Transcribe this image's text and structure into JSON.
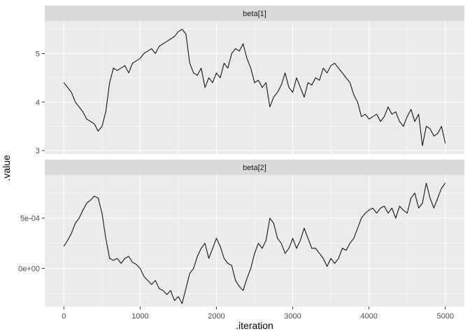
{
  "chart_data": {
    "type": "line",
    "xlabel": ".iteration",
    "ylabel": ".value",
    "xlim": [
      -250,
      5250
    ],
    "x_ticks": [
      0,
      1000,
      2000,
      3000,
      4000,
      5000
    ],
    "x_tick_labels": [
      "0",
      "1000",
      "2000",
      "3000",
      "4000",
      "5000"
    ],
    "grid": true,
    "line_color": "#000000",
    "panel_background": "#ebebeb",
    "strip_background": "#d9d9d9",
    "facets": [
      {
        "title": "beta[1]",
        "ylim": [
          2.93,
          5.67
        ],
        "y_ticks": [
          3,
          4,
          5
        ],
        "y_tick_labels": [
          "3",
          "4",
          "5"
        ],
        "x": [
          0,
          50,
          100,
          150,
          200,
          250,
          300,
          350,
          400,
          450,
          500,
          550,
          600,
          650,
          700,
          750,
          800,
          850,
          900,
          950,
          1000,
          1050,
          1100,
          1150,
          1200,
          1250,
          1300,
          1350,
          1400,
          1450,
          1500,
          1550,
          1600,
          1650,
          1700,
          1750,
          1800,
          1850,
          1900,
          1950,
          2000,
          2050,
          2100,
          2150,
          2200,
          2250,
          2300,
          2350,
          2400,
          2450,
          2500,
          2550,
          2600,
          2650,
          2700,
          2750,
          2800,
          2850,
          2900,
          2950,
          3000,
          3050,
          3100,
          3150,
          3200,
          3250,
          3300,
          3350,
          3400,
          3450,
          3500,
          3550,
          3600,
          3650,
          3700,
          3750,
          3800,
          3850,
          3900,
          3950,
          4000,
          4050,
          4100,
          4150,
          4200,
          4250,
          4300,
          4350,
          4400,
          4450,
          4500,
          4550,
          4600,
          4650,
          4700,
          4750,
          4800,
          4850,
          4900,
          4950,
          5000
        ],
        "values": [
          4.4,
          4.3,
          4.2,
          4.0,
          3.9,
          3.8,
          3.65,
          3.6,
          3.55,
          3.4,
          3.5,
          3.8,
          4.4,
          4.7,
          4.65,
          4.7,
          4.75,
          4.6,
          4.8,
          4.85,
          4.9,
          5.0,
          5.05,
          5.1,
          5.0,
          5.15,
          5.2,
          5.25,
          5.3,
          5.35,
          5.45,
          5.5,
          5.4,
          4.8,
          4.6,
          4.55,
          4.7,
          4.3,
          4.5,
          4.4,
          4.6,
          4.5,
          4.8,
          4.7,
          5.0,
          5.1,
          5.05,
          5.2,
          4.9,
          4.7,
          4.4,
          4.45,
          4.3,
          4.4,
          3.9,
          4.1,
          4.2,
          4.35,
          4.6,
          4.3,
          4.2,
          4.5,
          4.3,
          4.1,
          4.4,
          4.35,
          4.5,
          4.45,
          4.7,
          4.6,
          4.75,
          4.8,
          4.7,
          4.6,
          4.5,
          4.4,
          4.15,
          4.0,
          3.7,
          3.75,
          3.65,
          3.7,
          3.75,
          3.6,
          3.7,
          3.9,
          3.75,
          3.8,
          3.6,
          3.5,
          3.7,
          3.85,
          3.6,
          3.75,
          3.1,
          3.5,
          3.45,
          3.3,
          3.35,
          3.5,
          3.15
        ]
      },
      {
        "title": "beta[2]",
        "ylim": [
          -0.00038,
          0.00093
        ],
        "y_ticks": [
          0,
          0.0005
        ],
        "y_tick_labels": [
          "0e+00",
          "5e-04"
        ],
        "x": [
          0,
          50,
          100,
          150,
          200,
          250,
          300,
          350,
          400,
          450,
          500,
          550,
          600,
          650,
          700,
          750,
          800,
          850,
          900,
          950,
          1000,
          1050,
          1100,
          1150,
          1200,
          1250,
          1300,
          1350,
          1400,
          1450,
          1500,
          1550,
          1600,
          1650,
          1700,
          1750,
          1800,
          1850,
          1900,
          1950,
          2000,
          2050,
          2100,
          2150,
          2200,
          2250,
          2300,
          2350,
          2400,
          2450,
          2500,
          2550,
          2600,
          2650,
          2700,
          2750,
          2800,
          2850,
          2900,
          2950,
          3000,
          3050,
          3100,
          3150,
          3200,
          3250,
          3300,
          3350,
          3400,
          3450,
          3500,
          3550,
          3600,
          3650,
          3700,
          3750,
          3800,
          3850,
          3900,
          3950,
          4000,
          4050,
          4100,
          4150,
          4200,
          4250,
          4300,
          4350,
          4400,
          4450,
          4500,
          4550,
          4600,
          4650,
          4700,
          4750,
          4800,
          4850,
          4900,
          4950,
          5000
        ],
        "values": [
          0.00022,
          0.00028,
          0.00035,
          0.00045,
          0.0005,
          0.00058,
          0.00065,
          0.00068,
          0.00072,
          0.0007,
          0.00055,
          0.0003,
          0.0001,
          8e-05,
          0.0001,
          5e-05,
          0.0001,
          0.00012,
          6e-05,
          4e-05,
          0.0,
          -8e-05,
          -0.00012,
          -0.00016,
          -0.00012,
          -0.0002,
          -0.00022,
          -0.00026,
          -0.00022,
          -0.00032,
          -0.00028,
          -0.00035,
          -0.0002,
          -5e-05,
          0.0,
          0.00012,
          0.0002,
          0.00025,
          0.0001,
          0.0002,
          0.0003,
          0.00022,
          0.0001,
          5e-05,
          3e-05,
          -0.00012,
          -0.00018,
          -0.00022,
          -0.0001,
          0.0,
          0.00015,
          0.00025,
          0.0002,
          0.00028,
          0.0005,
          0.00045,
          0.0003,
          0.00025,
          0.00015,
          0.0002,
          0.0003,
          0.0002,
          0.00028,
          0.0004,
          0.0003,
          0.0002,
          0.0002,
          0.00015,
          0.0001,
          2e-05,
          0.0001,
          5e-05,
          0.0001,
          0.0002,
          0.00018,
          0.00025,
          0.0003,
          0.0004,
          0.0005,
          0.00055,
          0.00058,
          0.0006,
          0.00055,
          0.0006,
          0.00062,
          0.00055,
          0.0006,
          0.0005,
          0.00062,
          0.00058,
          0.00055,
          0.0007,
          0.00075,
          0.0006,
          0.00065,
          0.00085,
          0.0007,
          0.0006,
          0.0007,
          0.0008,
          0.00085
        ]
      }
    ]
  }
}
